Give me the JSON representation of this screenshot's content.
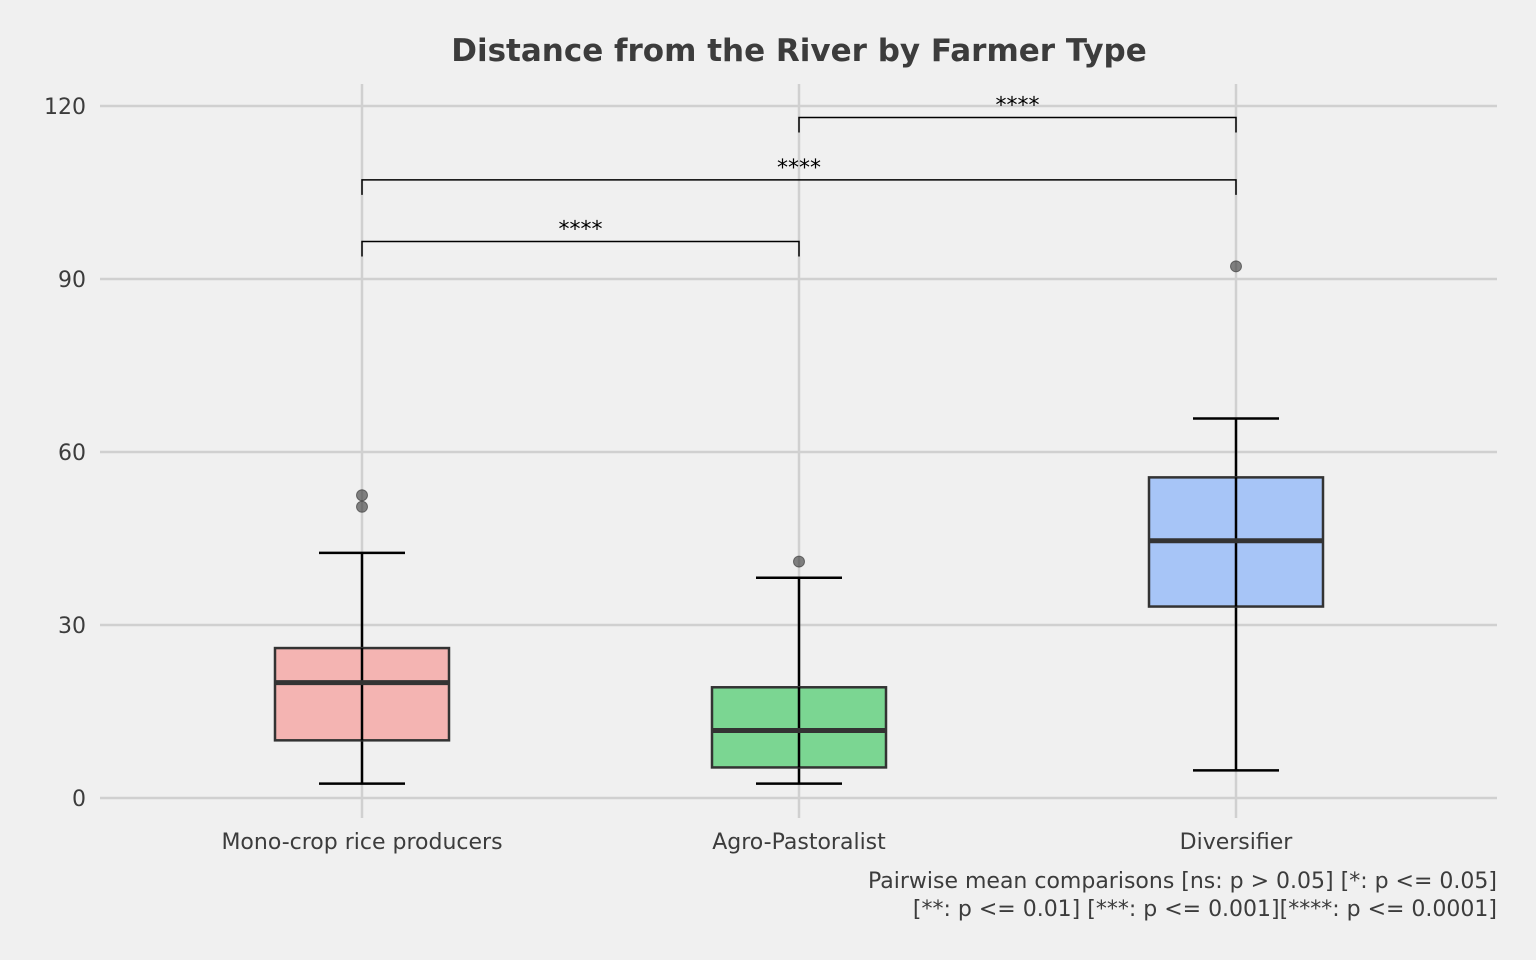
{
  "chart_data": {
    "type": "box",
    "title": "Distance from the River by Farmer Type",
    "xlabel": "",
    "ylabel": "",
    "ylim": [
      -3.5,
      124
    ],
    "yticks": [
      0,
      30,
      60,
      90,
      120
    ],
    "grid": true,
    "categories": [
      "Mono-crop rice producers",
      "Agro-Pastoralist",
      "Diversifier"
    ],
    "boxes": [
      {
        "category": "Mono-crop rice producers",
        "whisker_low": 2.5,
        "q1": 10,
        "median": 20,
        "q3": 26,
        "whisker_high": 42.5,
        "outliers": [
          50.5,
          52.5
        ],
        "color": "#f4b4b2"
      },
      {
        "category": "Agro-Pastoralist",
        "whisker_low": 2.5,
        "q1": 5.3,
        "median": 11.7,
        "q3": 19.2,
        "whisker_high": 38.2,
        "outliers": [
          41
        ],
        "color": "#7bd692"
      },
      {
        "category": "Diversifier",
        "whisker_low": 4.8,
        "q1": 33.2,
        "median": 44.6,
        "q3": 55.6,
        "whisker_high": 65.8,
        "outliers": [
          92.2
        ],
        "color": "#a7c5f7"
      }
    ],
    "comparisons": [
      {
        "from": "Mono-crop rice producers",
        "to": "Agro-Pastoralist",
        "label": "****",
        "y": 96.5
      },
      {
        "from": "Mono-crop rice producers",
        "to": "Diversifier",
        "label": "****",
        "y": 107.2
      },
      {
        "from": "Agro-Pastoralist",
        "to": "Diversifier",
        "label": "****",
        "y": 118
      }
    ],
    "caption": [
      "Pairwise mean comparisons [ns: p > 0.05] [*: p <= 0.05]",
      "[**: p <= 0.01] [***: p <= 0.001][****: p <= 0.0001]"
    ]
  }
}
